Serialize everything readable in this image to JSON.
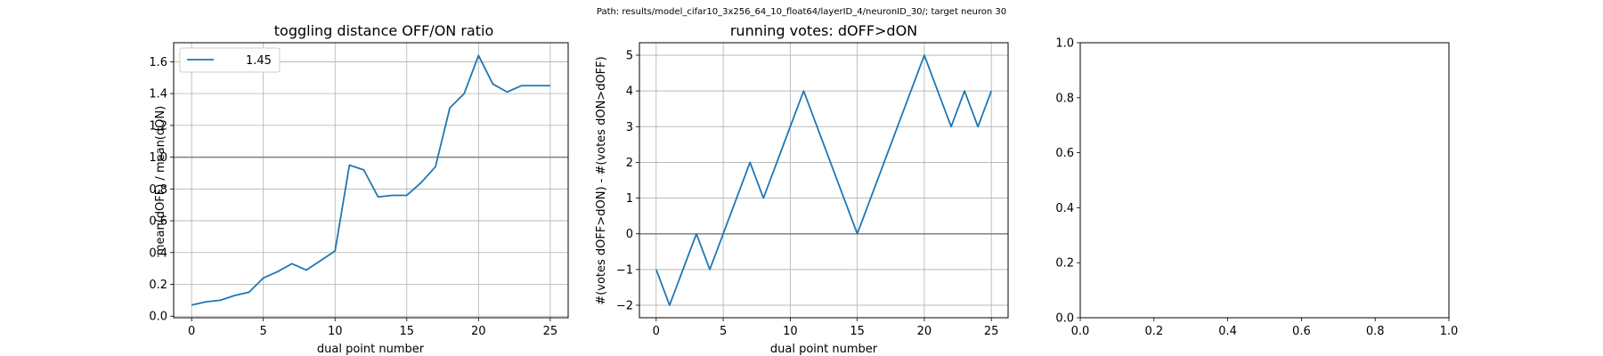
{
  "suptitle": "Path: results/model_cifar10_3x256_64_10_float64/layerID_4/neuronID_30/; target neuron 30",
  "colors": {
    "line": "#1f77b4",
    "grid": "#b0b0b0",
    "refline": "#808080",
    "axes": "#000000"
  },
  "chart_data": [
    {
      "type": "line",
      "title": "toggling distance OFF/ON ratio",
      "xlabel": "dual point number",
      "ylabel": "mean(dOFF) / mean(dON)",
      "xlim": [
        -1.25,
        26.25
      ],
      "ylim": [
        -0.01,
        1.72
      ],
      "xticks": [
        "0",
        "5",
        "10",
        "15",
        "20",
        "25"
      ],
      "yticks": [
        "0.0",
        "0.2",
        "0.4",
        "0.6",
        "0.8",
        "1.0",
        "1.2",
        "1.4",
        "1.6"
      ],
      "grid": true,
      "legend": {
        "position": "upper left",
        "entries": [
          "1.45"
        ]
      },
      "reference_line": 1.0,
      "series": [
        {
          "name": "1.45",
          "x": [
            0,
            1,
            2,
            3,
            4,
            5,
            6,
            7,
            8,
            9,
            10,
            11,
            12,
            13,
            14,
            15,
            16,
            17,
            18,
            19,
            20,
            21,
            22,
            23,
            24,
            25
          ],
          "y": [
            0.07,
            0.09,
            0.1,
            0.13,
            0.15,
            0.24,
            0.28,
            0.33,
            0.29,
            0.35,
            0.41,
            0.95,
            0.92,
            0.75,
            0.76,
            0.76,
            0.84,
            0.94,
            1.31,
            1.4,
            1.64,
            1.46,
            1.41,
            1.45,
            1.45,
            1.45
          ]
        }
      ]
    },
    {
      "type": "line",
      "title": "running votes: dOFF>dON",
      "xlabel": "dual point number",
      "ylabel": "#(votes dOFF>dON) - #(votes dON>dOFF)",
      "xlim": [
        -1.25,
        26.25
      ],
      "ylim": [
        -2.35,
        5.35
      ],
      "xticks": [
        "0",
        "5",
        "10",
        "15",
        "20",
        "25"
      ],
      "yticks": [
        "−2",
        "−1",
        "0",
        "1",
        "2",
        "3",
        "4",
        "5"
      ],
      "grid": true,
      "reference_line": 0,
      "series": [
        {
          "x": [
            0,
            1,
            2,
            3,
            4,
            5,
            6,
            7,
            8,
            9,
            10,
            11,
            12,
            13,
            14,
            15,
            16,
            17,
            18,
            19,
            20,
            21,
            22,
            23,
            24,
            25
          ],
          "y": [
            -1,
            -2,
            -1,
            0,
            -1,
            0,
            1,
            2,
            1,
            2,
            3,
            4,
            3,
            2,
            1,
            0,
            1,
            2,
            3,
            4,
            5,
            4,
            3,
            4,
            3,
            4
          ]
        }
      ]
    },
    {
      "type": "line",
      "title": "",
      "xlabel": "",
      "ylabel": "",
      "xlim": [
        0,
        1
      ],
      "ylim": [
        0,
        1
      ],
      "xticks": [
        "0.0",
        "0.2",
        "0.4",
        "0.6",
        "0.8",
        "1.0"
      ],
      "yticks": [
        "0.0",
        "0.2",
        "0.4",
        "0.6",
        "0.8",
        "1.0"
      ],
      "grid": false,
      "series": []
    }
  ]
}
